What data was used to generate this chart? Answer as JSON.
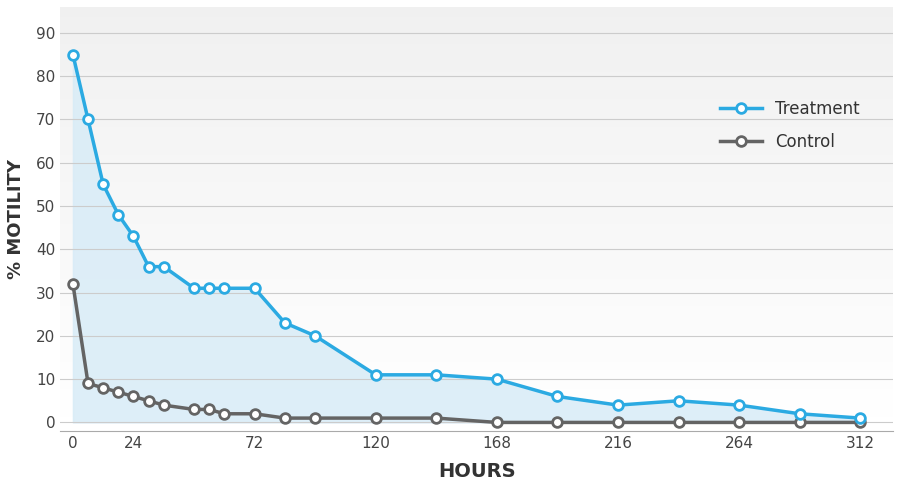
{
  "treatment_x": [
    0,
    6,
    12,
    18,
    24,
    30,
    36,
    48,
    54,
    60,
    72,
    84,
    96,
    120,
    144,
    168,
    192,
    216,
    240,
    264,
    288,
    312
  ],
  "treatment_y": [
    85,
    70,
    55,
    48,
    43,
    36,
    36,
    31,
    31,
    31,
    31,
    23,
    20,
    11,
    11,
    10,
    6,
    4,
    5,
    4,
    2,
    1
  ],
  "control_x": [
    0,
    6,
    12,
    18,
    24,
    30,
    36,
    48,
    54,
    60,
    72,
    84,
    96,
    120,
    144,
    168,
    192,
    216,
    240,
    264,
    288,
    312
  ],
  "control_y": [
    32,
    9,
    8,
    7,
    6,
    5,
    4,
    3,
    3,
    2,
    2,
    1,
    1,
    1,
    1,
    0,
    0,
    0,
    0,
    0,
    0,
    0
  ],
  "treatment_color": "#2baae2",
  "control_color": "#646464",
  "fill_color": "#d8ecf7",
  "marker_face": "#ffffff",
  "xlabel": "HOURS",
  "ylabel": "% MOTILITY",
  "yticks": [
    0,
    10,
    20,
    30,
    40,
    50,
    60,
    70,
    80,
    90
  ],
  "xtick_labels": [
    "0",
    "24",
    "72",
    "120",
    "168",
    "216",
    "264",
    "312"
  ],
  "xtick_positions": [
    0,
    24,
    72,
    120,
    168,
    216,
    264,
    312
  ],
  "ylim": [
    -2,
    96
  ],
  "xlim": [
    -5,
    325
  ],
  "legend_treatment": "Treatment",
  "legend_control": "Control",
  "linewidth": 2.5,
  "markersize": 7
}
